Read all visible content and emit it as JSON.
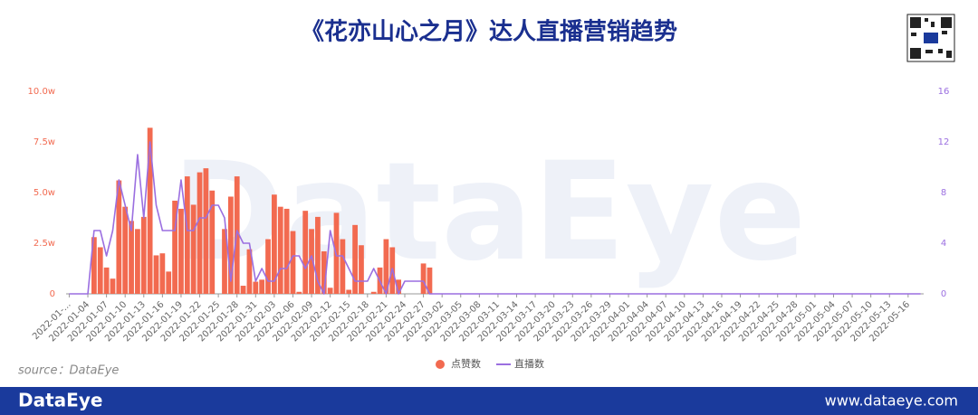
{
  "header": {
    "title": "《花亦山心之月》达人直播营销趋势"
  },
  "source": "source：DataEye",
  "footer": {
    "brand": "DataEye",
    "url": "www.dataeye.com"
  },
  "watermark": "DataEye",
  "chart_data": {
    "type": "bar",
    "categories": [
      "2022-01-...",
      null,
      null,
      "2022-01-04",
      null,
      null,
      "2022-01-07",
      null,
      null,
      "2022-01-10",
      null,
      null,
      "2022-01-13",
      null,
      null,
      "2022-01-16",
      null,
      null,
      "2022-01-19",
      null,
      null,
      "2022-01-22",
      null,
      null,
      "2022-01-25",
      null,
      null,
      "2022-01-28",
      null,
      null,
      "2022-01-31",
      null,
      null,
      "2022-02-03",
      null,
      null,
      "2022-02-06",
      null,
      null,
      "2022-02-09",
      null,
      null,
      "2022-02-12",
      null,
      null,
      "2022-02-15",
      null,
      null,
      "2022-02-18",
      null,
      null,
      "2022-02-21",
      null,
      null,
      "2022-02-24",
      null,
      null,
      "2022-02-27",
      null,
      null,
      "2022-03-02",
      null,
      null,
      "2022-03-05",
      null,
      null,
      "2022-03-08",
      null,
      null,
      "2022-03-11",
      null,
      null,
      "2022-03-14",
      null,
      null,
      "2022-03-17",
      null,
      null,
      "2022-03-20",
      null,
      null,
      "2022-03-23",
      null,
      null,
      "2022-03-26",
      null,
      null,
      "2022-03-29",
      null,
      null,
      "2022-04-01",
      null,
      null,
      "2022-04-04",
      null,
      null,
      "2022-04-07",
      null,
      null,
      "2022-04-10",
      null,
      null,
      "2022-04-13",
      null,
      null,
      "2022-04-16",
      null,
      null,
      "2022-04-19",
      null,
      null,
      "2022-04-22",
      null,
      null,
      "2022-04-25",
      null,
      null,
      "2022-04-28",
      null,
      null,
      "2022-05-01",
      null,
      null,
      "2022-05-04",
      null,
      null,
      "2022-05-07",
      null,
      null,
      "2022-05-10",
      null,
      null,
      "2022-05-13",
      null,
      null,
      "2022-05-16",
      null,
      null
    ],
    "series": [
      {
        "name": "点赞数",
        "type": "bar",
        "color": "#f26a50",
        "values": [
          0,
          0,
          0,
          0,
          28000,
          23000,
          13000,
          7500,
          56000,
          43000,
          36000,
          32000,
          38000,
          82000,
          19000,
          20000,
          11000,
          46000,
          42000,
          58000,
          44000,
          60000,
          62000,
          51000,
          0,
          32000,
          48000,
          58000,
          4000,
          22000,
          6000,
          7000,
          27000,
          49000,
          43000,
          42000,
          31000,
          1000,
          41000,
          32000,
          38000,
          21000,
          3000,
          40000,
          27000,
          2000,
          34000,
          24000,
          0,
          1000,
          13000,
          27000,
          23000,
          7000,
          0,
          0,
          0,
          15000,
          13000,
          0,
          0,
          0,
          0,
          0,
          0,
          0,
          0,
          0,
          0,
          0,
          0,
          0,
          0,
          0,
          0,
          0,
          0,
          0,
          0,
          0,
          0,
          0,
          0,
          0,
          0,
          0,
          0,
          0,
          0,
          0,
          0,
          0,
          0,
          0,
          0,
          0,
          0,
          0,
          0,
          0,
          0,
          0,
          0,
          0,
          0,
          0,
          0,
          0,
          0,
          0,
          0,
          0,
          0,
          0,
          0,
          0,
          0,
          0,
          0,
          0,
          0,
          0,
          0,
          0,
          0,
          0,
          0,
          0,
          0,
          0,
          0,
          0,
          0,
          0,
          0,
          0,
          0,
          0
        ]
      },
      {
        "name": "直播数",
        "type": "line",
        "axis": "y2",
        "color": "#9b6fe0",
        "values": [
          0,
          0,
          0,
          0,
          5,
          5,
          3,
          5,
          9,
          7,
          5,
          11,
          6,
          12,
          7,
          5,
          5,
          5,
          9,
          5,
          5,
          6,
          6,
          7,
          7,
          6,
          1,
          5,
          4,
          4,
          1,
          2,
          1,
          1,
          2,
          2,
          3,
          3,
          2,
          3,
          1,
          0,
          5,
          3,
          3,
          2,
          1,
          1,
          1,
          2,
          1,
          0,
          2,
          0,
          1,
          1,
          1,
          1,
          0,
          0,
          0,
          0,
          0,
          0,
          0,
          0,
          0,
          0,
          0,
          0,
          0,
          0,
          0,
          0,
          0,
          0,
          0,
          0,
          0,
          0,
          0,
          0,
          0,
          0,
          0,
          0,
          0,
          0,
          0,
          0,
          0,
          0,
          0,
          0,
          0,
          0,
          0,
          0,
          0,
          0,
          0,
          0,
          0,
          0,
          0,
          0,
          0,
          0,
          0,
          0,
          0,
          0,
          0,
          0,
          0,
          0,
          0,
          0,
          0,
          0,
          0,
          0,
          0,
          0,
          0,
          0,
          0,
          0,
          0,
          0,
          0,
          0,
          0,
          0,
          0,
          0,
          0,
          0
        ]
      }
    ],
    "ylim": [
      0,
      100000
    ],
    "yticks": [
      0,
      {
        "value": 25000,
        "label": "2.5w"
      },
      {
        "value": 50000,
        "label": "5.0w"
      },
      {
        "value": 75000,
        "label": "7.5w"
      },
      {
        "value": 100000,
        "label": "10.0w"
      }
    ],
    "y2lim": [
      0,
      16
    ],
    "y2ticks": [
      0,
      4,
      8,
      12,
      16
    ],
    "legend": "bottom"
  }
}
